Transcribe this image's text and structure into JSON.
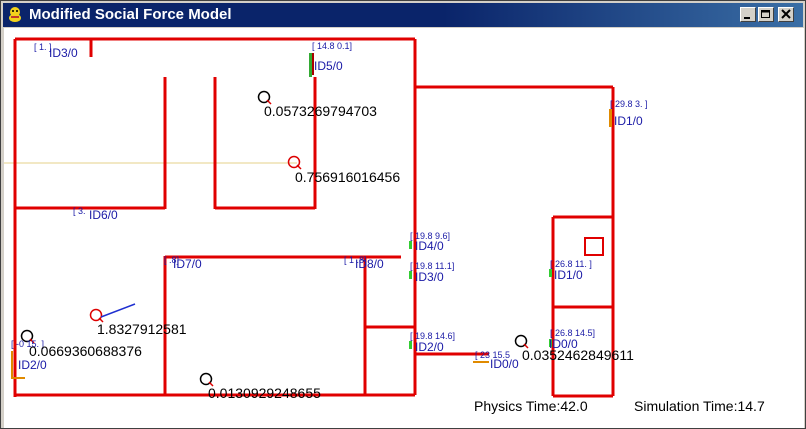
{
  "window": {
    "title": "Modified Social Force Model"
  },
  "colors": {
    "wall": "#e00000",
    "title_bar": "#0a246a",
    "label": "#1a1aa6",
    "force_line": "#ede0b0",
    "vector": "#1e2fd0"
  },
  "agents": [
    {
      "id_label": "ID3/0",
      "coord": "[ 1.    ]"
    },
    {
      "id_label": "ID5/0",
      "coord": "[ 14.8   0.1]"
    },
    {
      "id_label": "ID1/0",
      "coord": "[ 29.8   3. ]"
    },
    {
      "id_label": "ID6/0",
      "coord": "[ 3."
    },
    {
      "id_label": "ID4/0",
      "coord": "[ 19.8   9.6]"
    },
    {
      "id_label": "ID7/0",
      "coord": "[         .8]"
    },
    {
      "id_label": "ID8/0",
      "coord": "[ 1      .8]"
    },
    {
      "id_label": "ID3/0",
      "coord": "[ 19.8   11.1]"
    },
    {
      "id_label": "ID1/0",
      "coord": "[ 26.8   11. ]"
    },
    {
      "id_label": "ID2/0",
      "coord": "[ 19.8   14.6]"
    },
    {
      "id_label": "ID0/0",
      "coord": "[ 26.8   14.5]"
    },
    {
      "id_label": "ID2/0",
      "coord": "[ -0    15. ]"
    },
    {
      "id_label": "ID0/0",
      "coord": "[ 23      15.5"
    }
  ],
  "values": [
    "0.0573269794703",
    "0.756916016456",
    "1.8327912581",
    "0.0669360688376",
    "0.0130929248655",
    "0.0352462849611"
  ],
  "status": {
    "physics": "Physics Time:42.0",
    "simulation": "Simulation Time:14.7"
  }
}
